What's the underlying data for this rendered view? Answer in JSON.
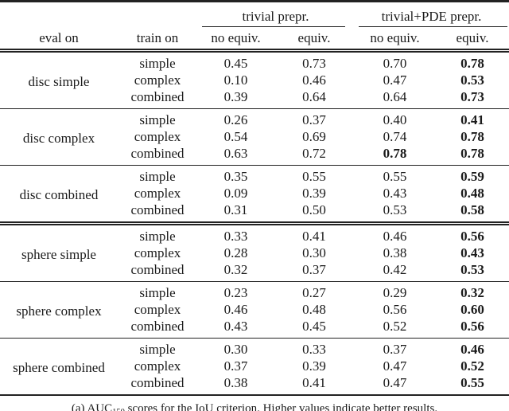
{
  "table": {
    "column_groups": [
      {
        "label": "trivial prepr."
      },
      {
        "label": "trivial+PDE prepr."
      }
    ],
    "headers": {
      "eval_on": "eval on",
      "train_on": "train on",
      "subcolumns": [
        "no equiv.",
        "equiv.",
        "no equiv.",
        "equiv."
      ]
    },
    "groups": [
      {
        "eval_on": "disc simple",
        "rule_above": "none",
        "rows": [
          {
            "train_on": "simple",
            "values": [
              "0.45",
              "0.73",
              "0.70",
              "0.78"
            ],
            "bold": [
              false,
              false,
              false,
              true
            ]
          },
          {
            "train_on": "complex",
            "values": [
              "0.10",
              "0.46",
              "0.47",
              "0.53"
            ],
            "bold": [
              false,
              false,
              false,
              true
            ]
          },
          {
            "train_on": "combined",
            "values": [
              "0.39",
              "0.64",
              "0.64",
              "0.73"
            ],
            "bold": [
              false,
              false,
              false,
              true
            ]
          }
        ]
      },
      {
        "eval_on": "disc complex",
        "rule_above": "single",
        "rows": [
          {
            "train_on": "simple",
            "values": [
              "0.26",
              "0.37",
              "0.40",
              "0.41"
            ],
            "bold": [
              false,
              false,
              false,
              true
            ]
          },
          {
            "train_on": "complex",
            "values": [
              "0.54",
              "0.69",
              "0.74",
              "0.78"
            ],
            "bold": [
              false,
              false,
              false,
              true
            ]
          },
          {
            "train_on": "combined",
            "values": [
              "0.63",
              "0.72",
              "0.78",
              "0.78"
            ],
            "bold": [
              false,
              false,
              true,
              true
            ]
          }
        ]
      },
      {
        "eval_on": "disc combined",
        "rule_above": "single",
        "rows": [
          {
            "train_on": "simple",
            "values": [
              "0.35",
              "0.55",
              "0.55",
              "0.59"
            ],
            "bold": [
              false,
              false,
              false,
              true
            ]
          },
          {
            "train_on": "complex",
            "values": [
              "0.09",
              "0.39",
              "0.43",
              "0.48"
            ],
            "bold": [
              false,
              false,
              false,
              true
            ]
          },
          {
            "train_on": "combined",
            "values": [
              "0.31",
              "0.50",
              "0.53",
              "0.58"
            ],
            "bold": [
              false,
              false,
              false,
              true
            ]
          }
        ]
      },
      {
        "eval_on": "sphere simple",
        "rule_above": "double",
        "rows": [
          {
            "train_on": "simple",
            "values": [
              "0.33",
              "0.41",
              "0.46",
              "0.56"
            ],
            "bold": [
              false,
              false,
              false,
              true
            ]
          },
          {
            "train_on": "complex",
            "values": [
              "0.28",
              "0.30",
              "0.38",
              "0.43"
            ],
            "bold": [
              false,
              false,
              false,
              true
            ]
          },
          {
            "train_on": "combined",
            "values": [
              "0.32",
              "0.37",
              "0.42",
              "0.53"
            ],
            "bold": [
              false,
              false,
              false,
              true
            ]
          }
        ]
      },
      {
        "eval_on": "sphere complex",
        "rule_above": "single",
        "rows": [
          {
            "train_on": "simple",
            "values": [
              "0.23",
              "0.27",
              "0.29",
              "0.32"
            ],
            "bold": [
              false,
              false,
              false,
              true
            ]
          },
          {
            "train_on": "complex",
            "values": [
              "0.46",
              "0.48",
              "0.56",
              "0.60"
            ],
            "bold": [
              false,
              false,
              false,
              true
            ]
          },
          {
            "train_on": "combined",
            "values": [
              "0.43",
              "0.45",
              "0.52",
              "0.56"
            ],
            "bold": [
              false,
              false,
              false,
              true
            ]
          }
        ]
      },
      {
        "eval_on": "sphere combined",
        "rule_above": "single",
        "rows": [
          {
            "train_on": "simple",
            "values": [
              "0.30",
              "0.33",
              "0.37",
              "0.46"
            ],
            "bold": [
              false,
              false,
              false,
              true
            ]
          },
          {
            "train_on": "complex",
            "values": [
              "0.37",
              "0.39",
              "0.47",
              "0.52"
            ],
            "bold": [
              false,
              false,
              false,
              true
            ]
          },
          {
            "train_on": "combined",
            "values": [
              "0.38",
              "0.41",
              "0.47",
              "0.55"
            ],
            "bold": [
              false,
              false,
              false,
              true
            ]
          }
        ]
      }
    ]
  },
  "caption": {
    "prefix": "(a) AUC",
    "subscript": "150",
    "suffix": " scores for the IoU criterion. Higher values indicate better results."
  },
  "colors": {
    "text": "#1a1a1a",
    "rule": "#222222",
    "background": "#ffffff"
  }
}
